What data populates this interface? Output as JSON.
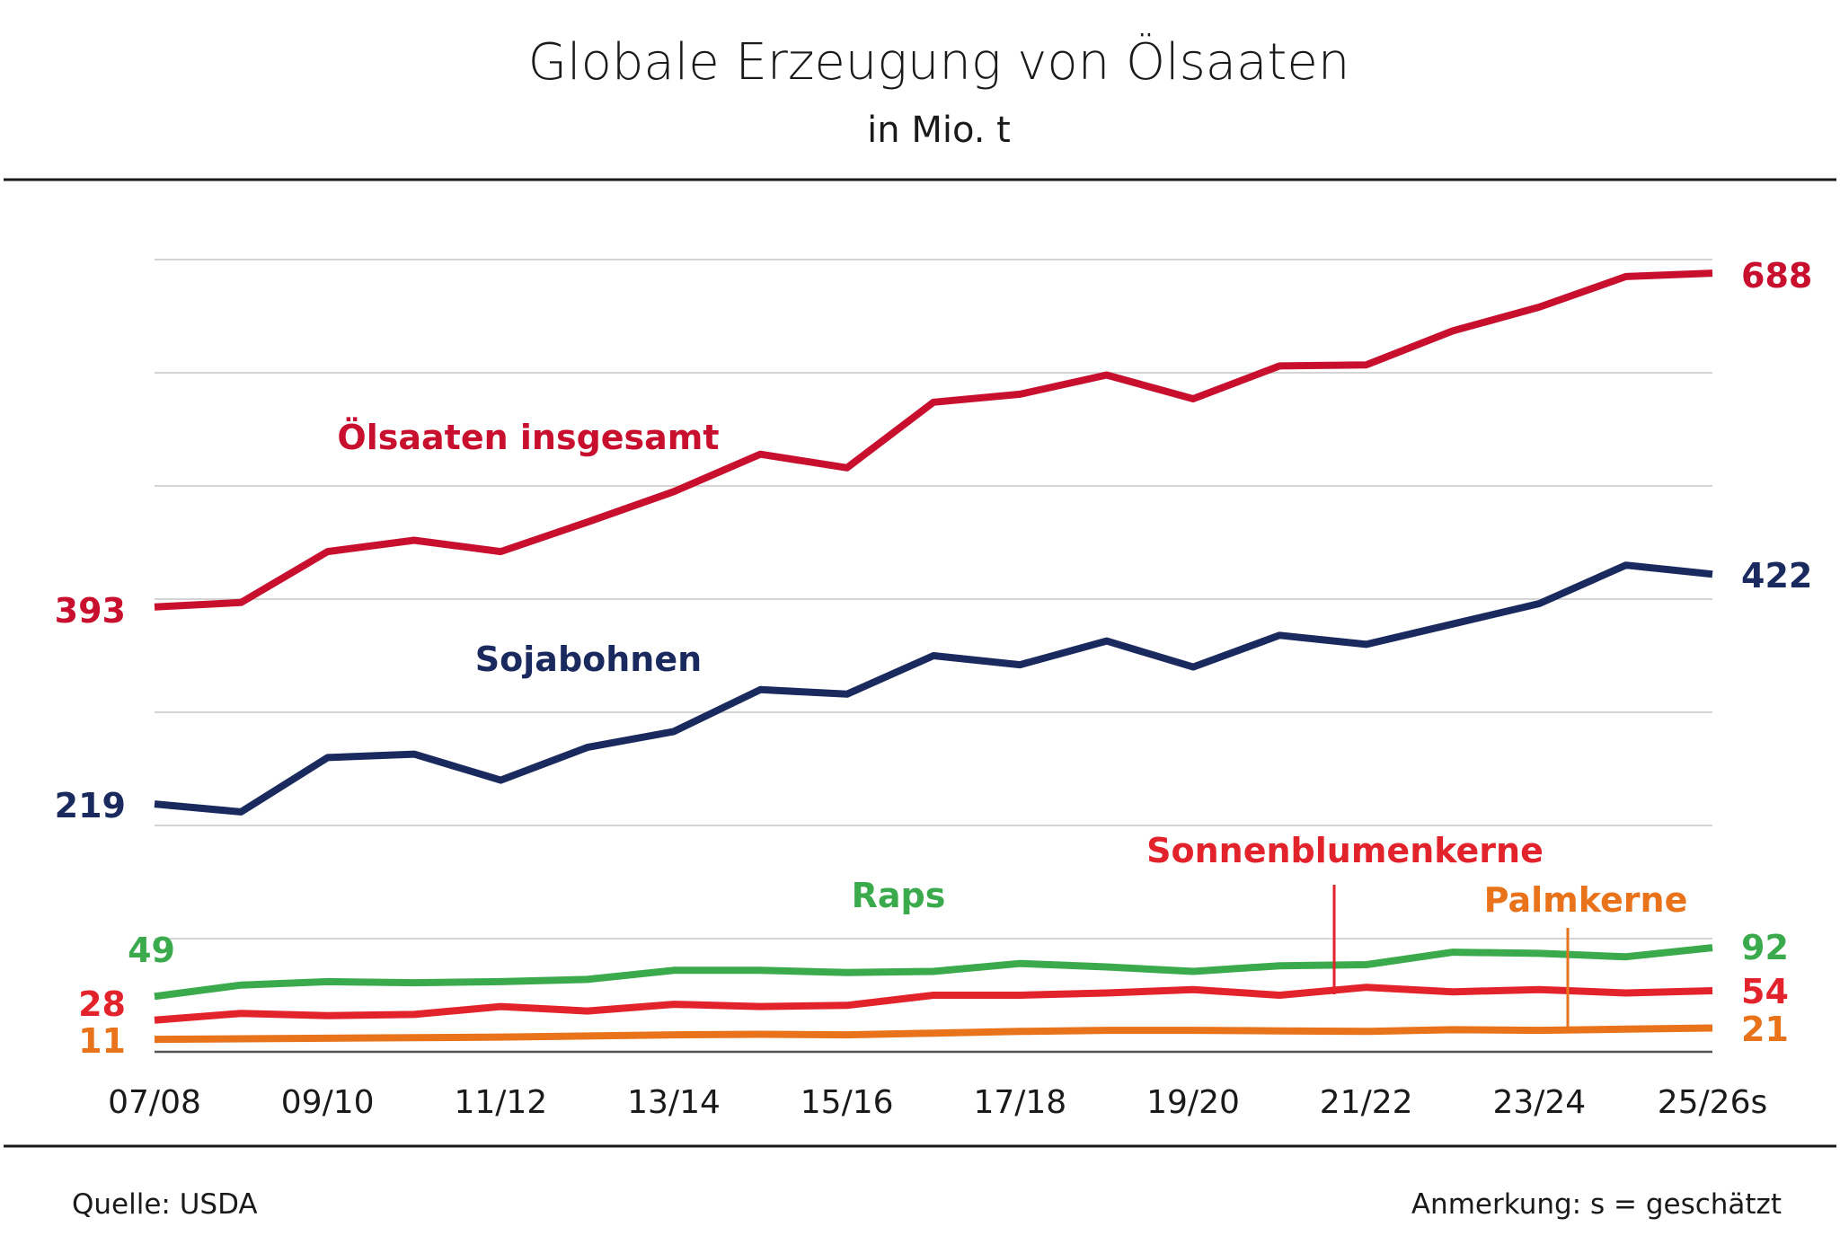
{
  "title": "Globale Erzeugung von Ölsaaten",
  "subtitle": "in Mio. t",
  "footer": {
    "source": "Quelle: USDA",
    "note": "Anmerkung: s = geschätzt"
  },
  "chart_data": {
    "type": "line",
    "title": "Globale Erzeugung von Ölsaaten",
    "subtitle": "in Mio. t",
    "xlabel": "",
    "ylabel": "",
    "ylim": [
      0,
      740
    ],
    "grid": true,
    "legend": "inline labels",
    "x": [
      "07/08",
      "08/09",
      "09/10",
      "10/11",
      "11/12",
      "12/13",
      "13/14",
      "14/15",
      "15/16",
      "16/17",
      "17/18",
      "18/19",
      "19/20",
      "20/21",
      "21/22",
      "22/23",
      "23/24",
      "24/25",
      "25/26s"
    ],
    "tick_labels": [
      "07/08",
      "09/10",
      "11/12",
      "13/14",
      "15/16",
      "17/18",
      "19/20",
      "21/22",
      "23/24",
      "25/26s"
    ],
    "series": [
      {
        "name": "Ölsaaten insgesamt",
        "color": "#c8102e",
        "start_label": "393",
        "end_label": "688",
        "values": [
          393,
          397,
          442,
          452,
          442,
          468,
          495,
          528,
          516,
          574,
          581,
          598,
          577,
          606,
          607,
          637,
          658,
          685,
          688
        ]
      },
      {
        "name": "Sojabohnen",
        "color": "#1b2a5e",
        "start_label": "219",
        "end_label": "422",
        "values": [
          219,
          212,
          260,
          263,
          240,
          269,
          283,
          320,
          316,
          350,
          342,
          363,
          340,
          368,
          360,
          378,
          396,
          430,
          422
        ]
      },
      {
        "name": "Raps",
        "color": "#3aaa4c",
        "start_label": "49",
        "end_label": "92",
        "values": [
          49,
          59,
          62,
          61,
          62,
          64,
          72,
          72,
          70,
          71,
          78,
          75,
          71,
          76,
          77,
          88,
          87,
          84,
          92
        ]
      },
      {
        "name": "Sonnenblumenkerne",
        "color": "#e2232b",
        "start_label": "28",
        "end_label": "54",
        "values": [
          28,
          34,
          32,
          33,
          40,
          36,
          42,
          40,
          41,
          50,
          50,
          52,
          55,
          50,
          57,
          53,
          55,
          52,
          54
        ]
      },
      {
        "name": "Palmkerne",
        "color": "#e8731a",
        "start_label": "11",
        "end_label": "21",
        "values": [
          11,
          11.5,
          12,
          12.5,
          13,
          14,
          15,
          15.5,
          15,
          16.5,
          18,
          19,
          19,
          18.5,
          18,
          19.5,
          19,
          20,
          21
        ]
      }
    ]
  }
}
